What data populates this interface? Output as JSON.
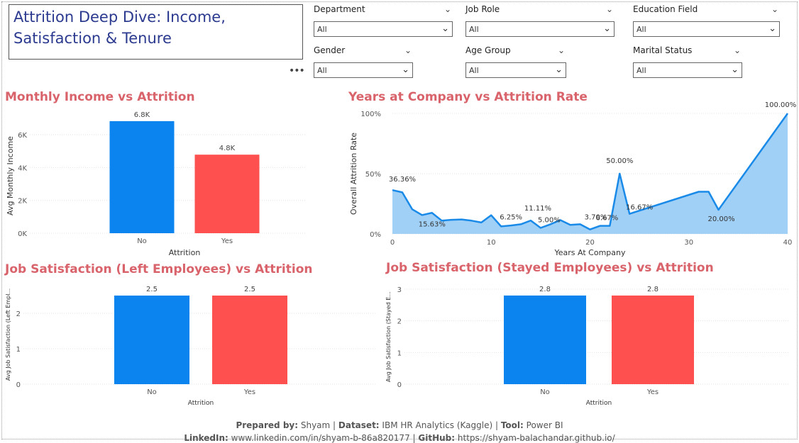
{
  "title": "Attrition Deep Dive: Income, Satisfaction & Tenure",
  "more_label": "•••",
  "slicers": [
    {
      "label": "Department",
      "value": "All"
    },
    {
      "label": "Job Role",
      "value": "All"
    },
    {
      "label": "Education Field",
      "value": "All"
    },
    {
      "label": "Gender",
      "value": "All"
    },
    {
      "label": "Age Group",
      "value": "All"
    },
    {
      "label": "Marital Status",
      "value": "All"
    }
  ],
  "colors": {
    "no": "#0b84f0",
    "yes": "#ff5050",
    "title": "#d9636b",
    "area": "#9ccdf7",
    "line": "#1a8ae8"
  },
  "chart_data": [
    {
      "type": "bar",
      "title": "Monthly Income vs Attrition",
      "xlabel": "Attrition",
      "ylabel": "Avg Monthly Income",
      "categories": [
        "No",
        "Yes"
      ],
      "values": [
        6832,
        4787
      ],
      "data_labels": [
        "6.8K",
        "4.8K"
      ],
      "ylim": [
        0,
        7000
      ],
      "yticks": [
        0,
        2000,
        4000,
        6000
      ],
      "ytick_labels": [
        "0K",
        "2K",
        "4K",
        "6K"
      ]
    },
    {
      "type": "area",
      "title": "Years at Company vs Attrition Rate",
      "xlabel": "Years At Company",
      "ylabel": "Overall Attrition Rate",
      "x": [
        0,
        1,
        2,
        3,
        4,
        5,
        6,
        7,
        8,
        9,
        10,
        11,
        12,
        13,
        14,
        15,
        16,
        17,
        18,
        19,
        20,
        21,
        22,
        23,
        24,
        31,
        32,
        33,
        40
      ],
      "y": [
        36.36,
        34.5,
        20.5,
        15.63,
        17.5,
        11,
        11.7,
        12,
        11,
        9.5,
        15.5,
        6.25,
        7,
        8,
        11.11,
        5.0,
        8,
        11.5,
        7.5,
        8,
        3.7,
        6.67,
        6.67,
        50.0,
        16.67,
        35,
        35,
        20.0,
        100.0
      ],
      "annotations": [
        {
          "x": 0,
          "label": "36.36%"
        },
        {
          "x": 3,
          "label": "15.63%"
        },
        {
          "x": 11,
          "label": "6.25%"
        },
        {
          "x": 14,
          "label": "11.11%"
        },
        {
          "x": 15,
          "label": "5.00%"
        },
        {
          "x": 20,
          "label": "3.70%"
        },
        {
          "x": 21,
          "label": "6.67%"
        },
        {
          "x": 23,
          "label": "50.00%"
        },
        {
          "x": 24,
          "label": "16.67%"
        },
        {
          "x": 33,
          "label": "20.00%"
        },
        {
          "x": 40,
          "label": "100.00%"
        }
      ],
      "xlim": [
        0,
        40
      ],
      "ylim": [
        0,
        100
      ],
      "xticks": [
        0,
        10,
        20,
        30,
        40
      ],
      "yticks": [
        0,
        50,
        100
      ],
      "ytick_labels": [
        "0%",
        "50%",
        "100%"
      ]
    },
    {
      "type": "bar",
      "title": "Job Satisfaction (Left Employees) vs Attrition",
      "xlabel": "Attrition",
      "ylabel": "Avg Job Satisfaction (Left Empl...",
      "categories": [
        "No",
        "Yes"
      ],
      "values": [
        2.5,
        2.5
      ],
      "data_labels": [
        "2.5",
        "2.5"
      ],
      "ylim": [
        0,
        2.8
      ],
      "yticks": [
        0,
        1,
        2
      ],
      "ytick_labels": [
        "0",
        "1",
        "2"
      ]
    },
    {
      "type": "bar",
      "title": "Job Satisfaction (Stayed Employees) vs Attrition",
      "xlabel": "Attrition",
      "ylabel": "Avg Job Satisfaction (Stayed E...",
      "categories": [
        "No",
        "Yes"
      ],
      "values": [
        2.8,
        2.8
      ],
      "data_labels": [
        "2.8",
        "2.8"
      ],
      "ylim": [
        0,
        3
      ],
      "yticks": [
        0,
        1,
        2,
        3
      ],
      "ytick_labels": [
        "0",
        "1",
        "2",
        "3"
      ]
    }
  ],
  "footer": {
    "line1_prepared_label": "Prepared by:",
    "line1_prepared_value": " Shyam | ",
    "line1_dataset_label": "Dataset:",
    "line1_dataset_value": " IBM HR Analytics (Kaggle) | ",
    "line1_tool_label": "Tool:",
    "line1_tool_value": " Power BI",
    "line2_linkedin_label": "LinkedIn:",
    "line2_linkedin_value": " www.linkedin.com/in/shyam-b-86a820177 | ",
    "line2_github_label": "GitHub:",
    "line2_github_value": " https://shyam-balachandar.github.io/"
  }
}
